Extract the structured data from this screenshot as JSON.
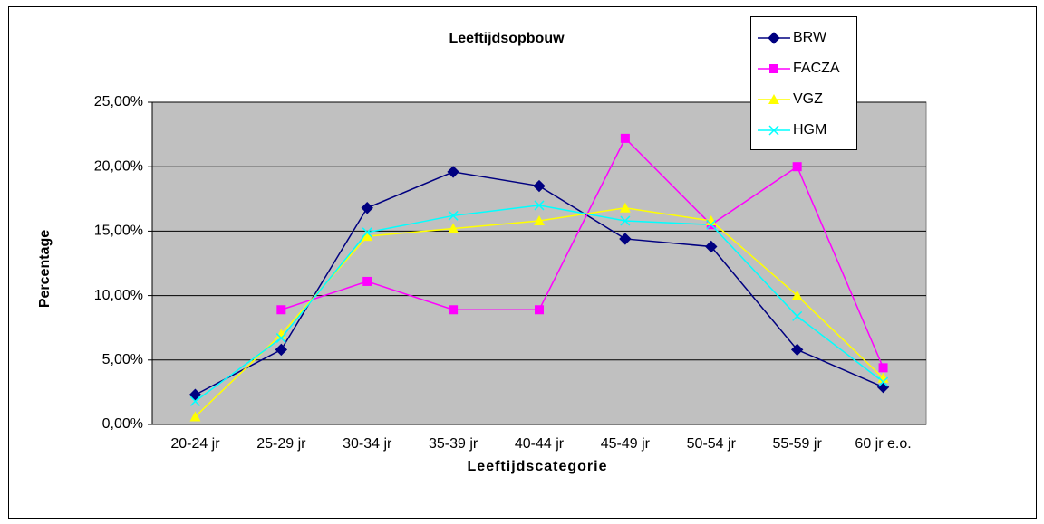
{
  "chart_data": {
    "type": "line",
    "title": "Leeftijdsopbouw",
    "xlabel": "Leeftijdscategorie",
    "ylabel": "Percentage",
    "categories": [
      "20-24 jr",
      "25-29 jr",
      "30-34 jr",
      "35-39 jr",
      "40-44 jr",
      "45-49 jr",
      "50-54 jr",
      "55-59 jr",
      "60 jr e.o."
    ],
    "series": [
      {
        "name": "BRW",
        "color": "#000080",
        "marker": "diamond",
        "values": [
          2.3,
          5.8,
          16.8,
          19.6,
          18.5,
          14.4,
          13.8,
          5.8,
          2.9
        ]
      },
      {
        "name": "FACZA",
        "color": "#ff00ff",
        "marker": "square",
        "values": [
          null,
          8.9,
          11.1,
          8.9,
          8.9,
          22.2,
          15.5,
          20.0,
          4.4
        ]
      },
      {
        "name": "VGZ",
        "color": "#ffff00",
        "marker": "triangle",
        "values": [
          0.6,
          7.0,
          14.6,
          15.2,
          15.8,
          16.8,
          15.8,
          10.0,
          3.6
        ]
      },
      {
        "name": "HGM",
        "color": "#00ffff",
        "marker": "x",
        "values": [
          1.8,
          6.7,
          14.9,
          16.2,
          17.0,
          15.8,
          15.5,
          8.4,
          3.3
        ]
      }
    ],
    "ylim": [
      0,
      25
    ],
    "yticks": [
      {
        "value": 0,
        "label": "0,00%"
      },
      {
        "value": 5,
        "label": "5,00%"
      },
      {
        "value": 10,
        "label": "10,00%"
      },
      {
        "value": 15,
        "label": "15,00%"
      },
      {
        "value": 20,
        "label": "20,00%"
      },
      {
        "value": 25,
        "label": "25,00%"
      }
    ],
    "grid": true,
    "legend": "top-right"
  }
}
